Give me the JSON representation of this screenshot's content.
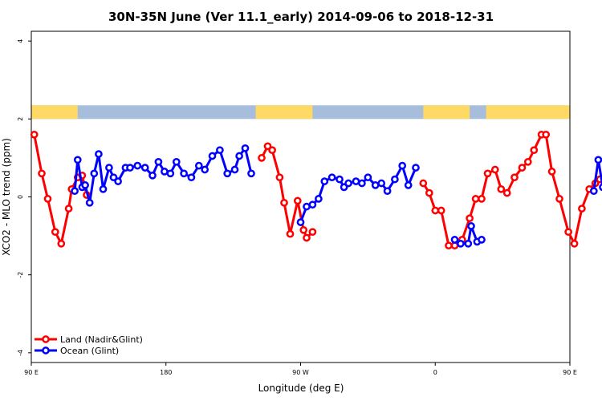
{
  "chart_data": {
    "type": "line",
    "title": "30N-35N June (Ver 11.1_early)   2014-09-06 to 2018-12-31",
    "xlabel": "Longitude (deg E)",
    "ylabel": "XCO2 - MLO trend (ppm)",
    "xlim": [
      90,
      450
    ],
    "ylim": [
      -4.25,
      4.25
    ],
    "x_ticks": [
      {
        "value": 90,
        "label": "90 E"
      },
      {
        "value": 180,
        "label": "180"
      },
      {
        "value": 270,
        "label": "90 W"
      },
      {
        "value": 360,
        "label": "0"
      },
      {
        "value": 450,
        "label": "90 E"
      },
      {
        "value": 540,
        "label": "180"
      }
    ],
    "y_ticks": [
      -4,
      -2,
      0,
      2,
      4
    ],
    "legend_position": "bottom-left",
    "land_ocean_band": {
      "y_range": [
        2.0,
        2.35
      ],
      "land_color": "#FFD966",
      "ocean_color": "#A6BDDB",
      "land_segments": [
        [
          90,
          121
        ],
        [
          240,
          278
        ],
        [
          352,
          383
        ],
        [
          394,
          490
        ],
        [
          503,
          508
        ]
      ]
    },
    "series": [
      {
        "name": "Land (Nadir&Glint)",
        "color": "#FF0000",
        "segments": [
          {
            "x": [
              92,
              97,
              101,
              106,
              110,
              115,
              117,
              121,
              124,
              127
            ],
            "y": [
              1.6,
              0.6,
              -0.05,
              -0.9,
              -1.2,
              -0.3,
              0.2,
              0.5,
              0.55,
              0.05
            ]
          },
          {
            "x": [
              244,
              248,
              251,
              256,
              259,
              263,
              268,
              272,
              274,
              278
            ],
            "y": [
              1.0,
              1.3,
              1.2,
              0.5,
              -0.15,
              -0.95,
              -0.1,
              -0.85,
              -1.05,
              -0.9
            ]
          },
          {
            "x": [
              352,
              356,
              360,
              364,
              369,
              373,
              378,
              383,
              387,
              391,
              395,
              400,
              404,
              408,
              413,
              418,
              422,
              426,
              431,
              434,
              438,
              443,
              449,
              453,
              458,
              463,
              467,
              470,
              475,
              479,
              484
            ],
            "y": [
              0.35,
              0.1,
              -0.35,
              -0.35,
              -1.25,
              -1.25,
              -1.1,
              -0.55,
              -0.05,
              -0.05,
              0.6,
              0.7,
              0.2,
              0.1,
              0.5,
              0.75,
              0.9,
              1.2,
              1.6,
              1.6,
              0.65,
              -0.05,
              -0.9,
              -1.2,
              -0.3,
              0.2,
              0.35,
              0.45,
              0.55,
              0.1,
              0.3
            ]
          }
        ]
      },
      {
        "name": "Ocean (Glint)",
        "color": "#0000FF",
        "segments": [
          {
            "x": [
              119,
              121,
              124,
              126,
              129,
              132,
              135,
              138,
              142,
              145,
              148,
              153,
              156,
              161,
              166,
              171,
              175,
              179,
              183,
              187,
              192,
              197,
              202,
              206,
              211,
              216,
              221,
              226,
              229,
              233,
              237
            ],
            "y": [
              0.15,
              0.95,
              0.25,
              0.3,
              -0.15,
              0.6,
              1.1,
              0.2,
              0.75,
              0.5,
              0.4,
              0.75,
              0.75,
              0.8,
              0.75,
              0.55,
              0.9,
              0.65,
              0.6,
              0.9,
              0.6,
              0.5,
              0.8,
              0.7,
              1.05,
              1.2,
              0.6,
              0.7,
              1.05,
              1.25,
              0.6
            ]
          },
          {
            "x": [
              270,
              274,
              278,
              282,
              286,
              291,
              296,
              299,
              302,
              307,
              311,
              315,
              320,
              324,
              328,
              333,
              338,
              342,
              347
            ],
            "y": [
              -0.65,
              -0.25,
              -0.2,
              -0.05,
              0.4,
              0.5,
              0.45,
              0.25,
              0.35,
              0.4,
              0.35,
              0.5,
              0.3,
              0.35,
              0.15,
              0.45,
              0.8,
              0.3,
              0.75
            ]
          },
          {
            "x": [
              373,
              377,
              382,
              384,
              388,
              391
            ],
            "y": [
              -1.1,
              -1.2,
              -1.2,
              -0.75,
              -1.15,
              -1.1
            ]
          },
          {
            "x": [
              466,
              469,
              472,
              476,
              479,
              483,
              487,
              492,
              497,
              502,
              506,
              511
            ],
            "y": [
              0.15,
              0.95,
              0.25,
              -0.15,
              0.6,
              1.1,
              0.2,
              0.75,
              0.55,
              0.4,
              0.8,
              0.75
            ]
          }
        ]
      }
    ]
  }
}
